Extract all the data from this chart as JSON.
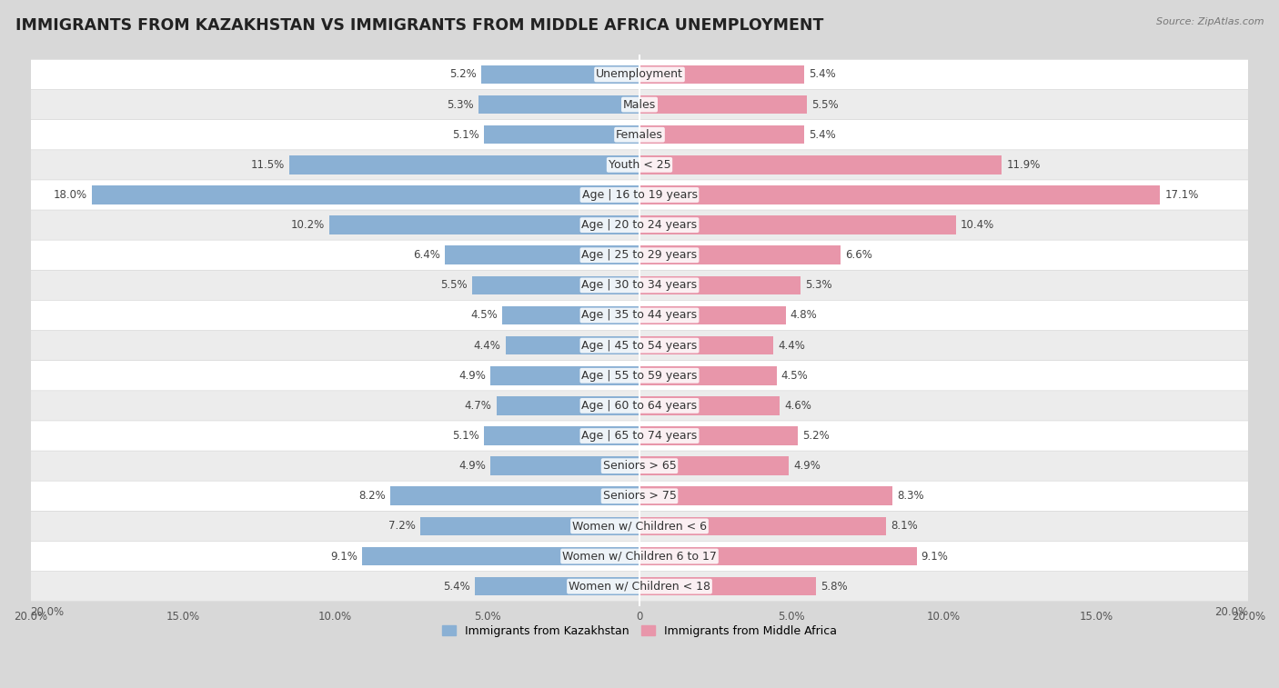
{
  "title": "IMMIGRANTS FROM KAZAKHSTAN VS IMMIGRANTS FROM MIDDLE AFRICA UNEMPLOYMENT",
  "source": "Source: ZipAtlas.com",
  "categories": [
    "Unemployment",
    "Males",
    "Females",
    "Youth < 25",
    "Age | 16 to 19 years",
    "Age | 20 to 24 years",
    "Age | 25 to 29 years",
    "Age | 30 to 34 years",
    "Age | 35 to 44 years",
    "Age | 45 to 54 years",
    "Age | 55 to 59 years",
    "Age | 60 to 64 years",
    "Age | 65 to 74 years",
    "Seniors > 65",
    "Seniors > 75",
    "Women w/ Children < 6",
    "Women w/ Children 6 to 17",
    "Women w/ Children < 18"
  ],
  "kazakhstan_values": [
    5.2,
    5.3,
    5.1,
    11.5,
    18.0,
    10.2,
    6.4,
    5.5,
    4.5,
    4.4,
    4.9,
    4.7,
    5.1,
    4.9,
    8.2,
    7.2,
    9.1,
    5.4
  ],
  "middle_africa_values": [
    5.4,
    5.5,
    5.4,
    11.9,
    17.1,
    10.4,
    6.6,
    5.3,
    4.8,
    4.4,
    4.5,
    4.6,
    5.2,
    4.9,
    8.3,
    8.1,
    9.1,
    5.8
  ],
  "kazakhstan_color": "#8ab0d4",
  "middle_africa_color": "#e896aa",
  "row_color_even": "#f5f5f5",
  "row_color_odd": "#e8e8e8",
  "background_color": "#d8d8d8",
  "max_value": 20.0,
  "legend_kazakhstan": "Immigrants from Kazakhstan",
  "legend_middle_africa": "Immigrants from Middle Africa",
  "title_fontsize": 12.5,
  "label_fontsize": 9,
  "value_fontsize": 8.5,
  "tick_fontsize": 8.5
}
